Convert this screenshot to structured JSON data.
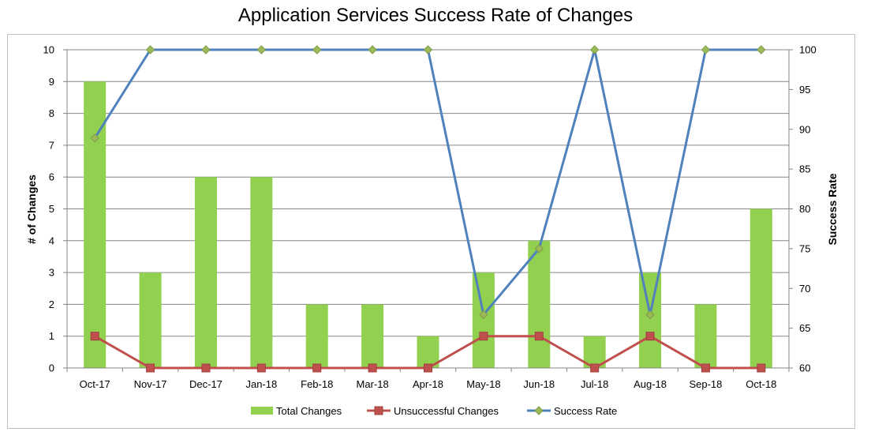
{
  "chart_data": {
    "type": "bar",
    "title": "Application Services Success Rate of Changes",
    "categories": [
      "Oct-17",
      "Nov-17",
      "Dec-17",
      "Jan-18",
      "Feb-18",
      "Mar-18",
      "Apr-18",
      "May-18",
      "Jun-18",
      "Jul-18",
      "Aug-18",
      "Sep-18",
      "Oct-18"
    ],
    "ylabel": "# of Changes",
    "y2label": "Success Rate",
    "ylim": [
      0,
      10
    ],
    "y2lim": [
      60,
      100
    ],
    "yticks": [
      "0",
      "1",
      "2",
      "3",
      "4",
      "5",
      "6",
      "7",
      "8",
      "9",
      "10"
    ],
    "y2ticks": [
      "60",
      "65",
      "70",
      "75",
      "80",
      "85",
      "90",
      "95",
      "100"
    ],
    "grid": true,
    "legend_position": "bottom",
    "series": [
      {
        "name": "Total Changes",
        "kind": "bar",
        "axis": "left",
        "color": "#92d050",
        "values": [
          9,
          3,
          6,
          6,
          2,
          2,
          1,
          3,
          4,
          1,
          3,
          2,
          5
        ]
      },
      {
        "name": "Unsuccessful Changes",
        "kind": "line",
        "axis": "left",
        "color": "#c0504d",
        "marker": "square",
        "values": [
          1,
          0,
          0,
          0,
          0,
          0,
          0,
          1,
          1,
          0,
          1,
          0,
          0
        ]
      },
      {
        "name": "Success Rate",
        "kind": "line",
        "axis": "right",
        "color": "#4f81bd",
        "marker": "diamond",
        "values": [
          88.9,
          100,
          100,
          100,
          100,
          100,
          100,
          66.7,
          75,
          100,
          66.7,
          100,
          100
        ]
      }
    ]
  }
}
